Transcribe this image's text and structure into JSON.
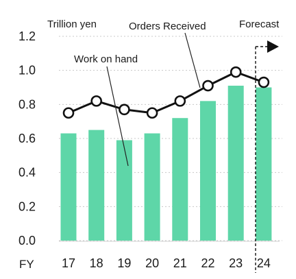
{
  "chart_data": {
    "type": "bar",
    "categories": [
      "17",
      "18",
      "19",
      "20",
      "21",
      "22",
      "23",
      "24"
    ],
    "series": [
      {
        "name": "Work on hand",
        "type": "bar",
        "color": "#5ed6a8",
        "values": [
          0.63,
          0.65,
          0.59,
          0.63,
          0.72,
          0.82,
          0.91,
          0.9
        ]
      },
      {
        "name": "Orders Received",
        "type": "line",
        "color": "#111111",
        "values": [
          0.75,
          0.82,
          0.77,
          0.75,
          0.82,
          0.91,
          0.99,
          0.93
        ]
      }
    ],
    "ylim": [
      0.0,
      1.2
    ],
    "yticks": [
      "0.0",
      "0.2",
      "0.4",
      "0.6",
      "0.8",
      "1.0",
      "1.2"
    ],
    "xlabel": "FY",
    "unit_label": "Trillion yen",
    "forecast_label": "Forecast",
    "forecast_from_category": "24",
    "grid": "horizontal-dotted",
    "legend": "inline-annotations"
  }
}
